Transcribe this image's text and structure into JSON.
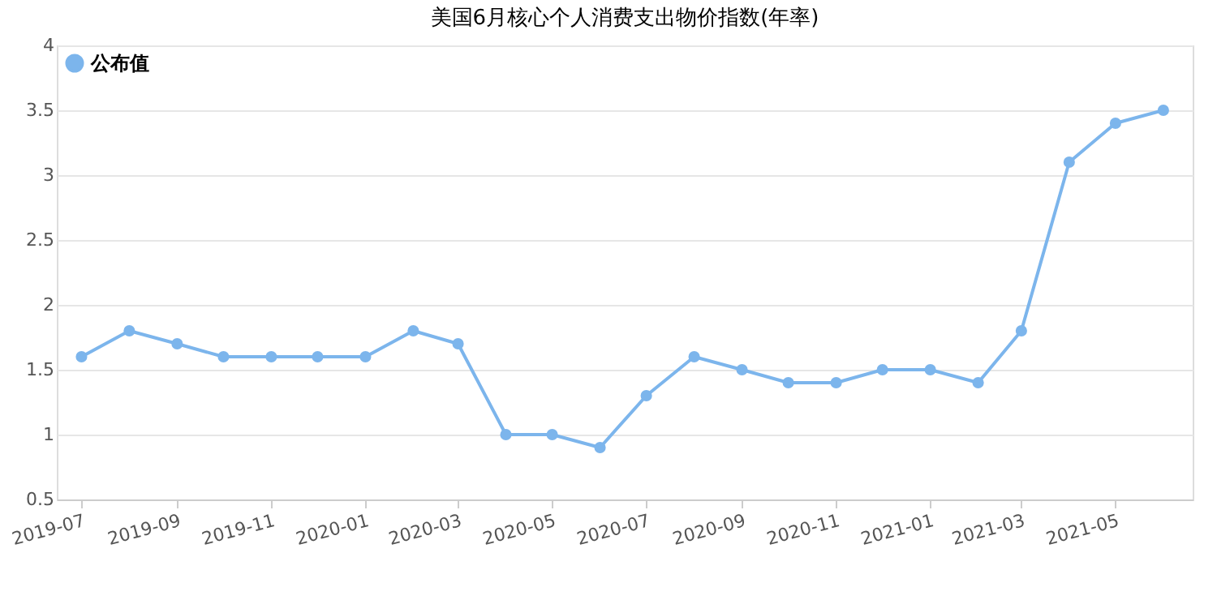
{
  "chart_data": {
    "type": "line",
    "title": "美国6月核心个人消费支出物价指数(年率)",
    "x": [
      "2019-07",
      "2019-08",
      "2019-09",
      "2019-10",
      "2019-11",
      "2019-12",
      "2020-01",
      "2020-02",
      "2020-03",
      "2020-04",
      "2020-05",
      "2020-06",
      "2020-07",
      "2020-08",
      "2020-09",
      "2020-10",
      "2020-11",
      "2020-12",
      "2021-01",
      "2021-02",
      "2021-03",
      "2021-04",
      "2021-05",
      "2021-06"
    ],
    "series": [
      {
        "name": "公布值",
        "color": "#7cb5ec",
        "values": [
          1.6,
          1.8,
          1.7,
          1.6,
          1.6,
          1.6,
          1.6,
          1.8,
          1.7,
          1.0,
          1.0,
          0.9,
          1.3,
          1.6,
          1.5,
          1.4,
          1.4,
          1.5,
          1.5,
          1.4,
          1.8,
          3.1,
          3.4,
          3.5
        ]
      }
    ],
    "xlim": [
      "2019-06-15",
      "2021-06-20"
    ],
    "xticks": [
      "2019-07",
      "2019-09",
      "2019-11",
      "2020-01",
      "2020-03",
      "2020-05",
      "2020-07",
      "2020-09",
      "2020-11",
      "2021-01",
      "2021-03",
      "2021-05"
    ],
    "ylim": [
      0.5,
      4
    ],
    "yticks": [
      0.5,
      1,
      1.5,
      2,
      2.5,
      3,
      3.5,
      4
    ],
    "grid": "y",
    "legend": "top left",
    "marker": "circle",
    "line_style": "solid"
  }
}
